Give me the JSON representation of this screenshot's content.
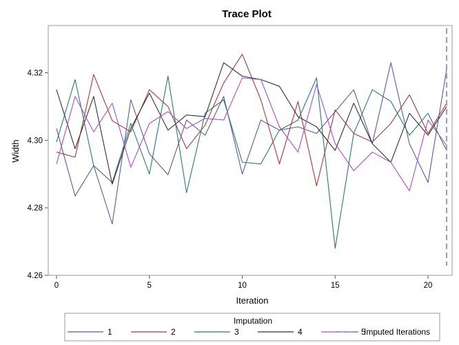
{
  "chart_data": {
    "type": "line",
    "title": "Trace Plot",
    "xlabel": "Iteration",
    "ylabel": "Width",
    "xlim": [
      0,
      21
    ],
    "ylim": [
      4.26,
      4.334
    ],
    "x_ticks": [
      0,
      5,
      10,
      15,
      20
    ],
    "y_ticks": [
      4.26,
      4.28,
      4.3,
      4.32
    ],
    "y_tick_labels": [
      "4.26",
      "4.28",
      "4.30",
      "4.32"
    ],
    "x": [
      0,
      1,
      2,
      3,
      4,
      5,
      6,
      7,
      8,
      9,
      10,
      11,
      12,
      13,
      14,
      15,
      16,
      17,
      18,
      19,
      20,
      21
    ],
    "legend_title": "Imputation",
    "legend_position": "bottom",
    "series": [
      {
        "name": "1",
        "color": "#5a5a9a",
        "values": [
          4.3035,
          4.2835,
          4.2925,
          4.2752,
          4.312,
          4.296,
          4.2898,
          4.306,
          4.3015,
          4.313,
          4.29,
          4.306,
          4.303,
          4.304,
          4.302,
          4.3085,
          4.315,
          4.299,
          4.323,
          4.299,
          4.2875,
          4.321
        ]
      },
      {
        "name": "2",
        "color": "#a33a3a",
        "values": [
          4.2965,
          4.295,
          4.3195,
          4.3058,
          4.3025,
          4.315,
          4.31,
          4.2975,
          4.3045,
          4.317,
          4.3255,
          4.312,
          4.293,
          4.3115,
          4.2865,
          4.309,
          4.302,
          4.2995,
          4.305,
          4.3135,
          4.302,
          4.311
        ]
      },
      {
        "name": "3",
        "color": "#2a7a6a",
        "values": [
          4.2995,
          4.318,
          4.2925,
          4.2875,
          4.305,
          4.29,
          4.319,
          4.2845,
          4.308,
          4.312,
          4.2935,
          4.293,
          4.303,
          4.306,
          4.3185,
          4.268,
          4.302,
          4.315,
          4.3115,
          4.3015,
          4.308,
          4.297
        ]
      },
      {
        "name": "4",
        "color": "#333333",
        "values": [
          4.315,
          4.2975,
          4.313,
          4.287,
          4.3035,
          4.314,
          4.303,
          4.3075,
          4.307,
          4.323,
          4.319,
          4.318,
          4.316,
          4.307,
          4.304,
          4.297,
          4.311,
          4.299,
          4.2935,
          4.308,
          4.3015,
          4.31
        ]
      },
      {
        "name": "5",
        "color": "#a64fc9",
        "values": [
          4.293,
          4.313,
          4.3025,
          4.311,
          4.292,
          4.305,
          4.3085,
          4.3035,
          4.3065,
          4.306,
          4.3185,
          4.318,
          4.304,
          4.2965,
          4.3165,
          4.299,
          4.291,
          4.2965,
          4.2935,
          4.285,
          4.306,
          4.2985
        ]
      }
    ],
    "reference_line": {
      "name": "Imputed Iterations",
      "x": 21,
      "color": "#a0a0b0",
      "style": "dashed"
    }
  }
}
